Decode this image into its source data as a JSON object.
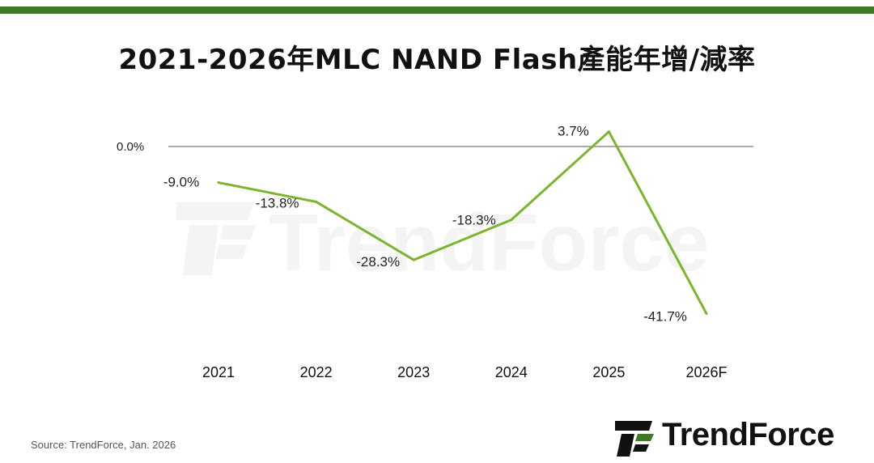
{
  "title": "2021-2026年MLC NAND Flash產能年增/減率",
  "source": "Source: TrendForce, Jan. 2026",
  "brand": {
    "name": "TrendForce",
    "watermark": "TrendForce"
  },
  "colors": {
    "line": "#7bb52e",
    "accent_bar": "#3f7a27",
    "zero_line": "#555555",
    "text": "#111111"
  },
  "chart_data": {
    "type": "line",
    "title": "2021-2026年MLC NAND Flash產能年增/減率",
    "xlabel": "",
    "ylabel": "",
    "categories": [
      "2021",
      "2022",
      "2023",
      "2024",
      "2025",
      "2026F"
    ],
    "series": [
      {
        "values": [
          -9.0,
          -13.8,
          -28.3,
          -18.3,
          3.7,
          -41.7
        ],
        "labels": [
          "-9.0%",
          "-13.8%",
          "-28.3%",
          "-18.3%",
          "3.7%",
          "-41.7%"
        ]
      }
    ],
    "y_reference": {
      "value": 0,
      "label": "0.0%"
    },
    "ylim": [
      -45,
      5
    ],
    "grid": false,
    "legend": "none"
  }
}
